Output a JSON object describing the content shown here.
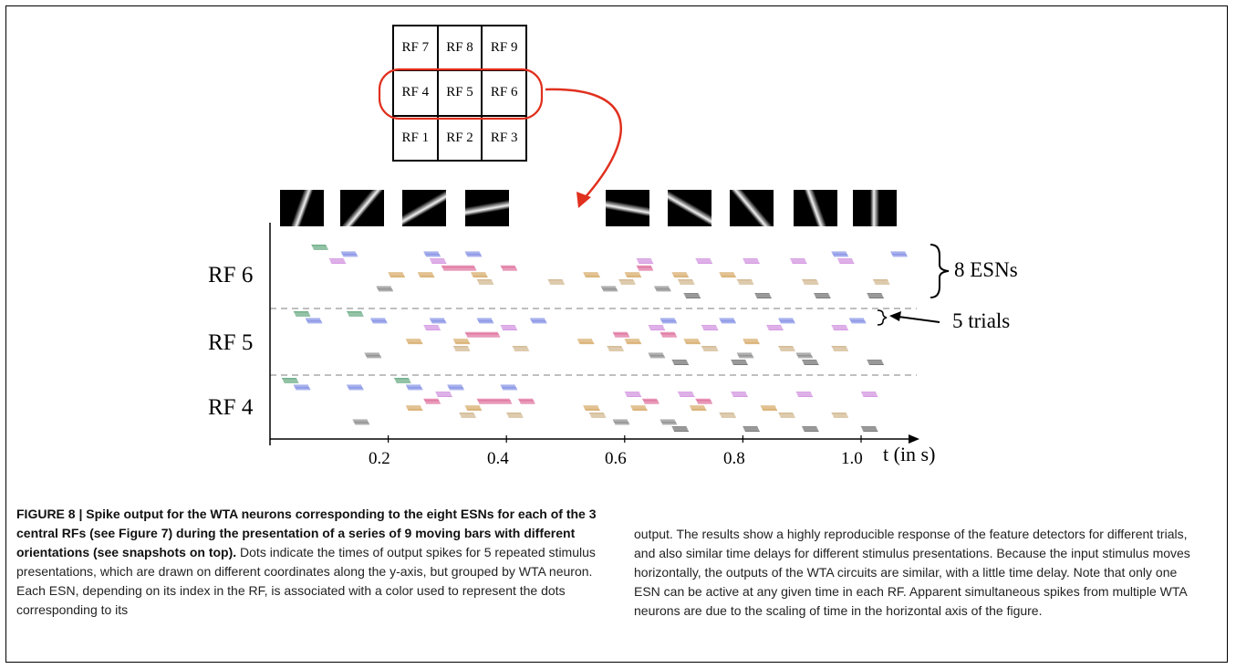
{
  "rf_grid": {
    "rows": [
      [
        "RF 7",
        "RF 8",
        "RF 9"
      ],
      [
        "RF 4",
        "RF 5",
        "RF 6"
      ],
      [
        "RF 1",
        "RF 2",
        "RF 3"
      ]
    ],
    "highlight_color": "#e0301e"
  },
  "stimulus_orientations_deg": [
    70,
    50,
    30,
    10,
    -10,
    -30,
    -50,
    -70,
    -90
  ],
  "raster": {
    "row_labels": [
      "RF 6",
      "RF 5",
      "RF 4"
    ],
    "x_ticks": [
      "0.2",
      "0.4",
      "0.6",
      "0.8",
      "1.0"
    ],
    "x_label": "t (in s)",
    "annotations": {
      "esns": "8 ESNs",
      "trials": "5 trials"
    },
    "esn_colors": [
      "#4a9a6a",
      "#6b7ae0",
      "#c97bd8",
      "#d8558a",
      "#cf9a4a",
      "#c8a878",
      "#777777",
      "#555555"
    ]
  },
  "chart_data": {
    "type": "scatter",
    "xlabel": "t (in s)",
    "xticks": [
      0.2,
      0.4,
      0.6,
      0.8,
      1.0
    ],
    "xlim": [
      0,
      1.1
    ],
    "groups": [
      "RF 6",
      "RF 5",
      "RF 4"
    ],
    "esns_per_group": 8,
    "trials_per_esn": 5,
    "bursts": [
      {
        "group": 0,
        "esn": 0,
        "t": [
          0.07
        ]
      },
      {
        "group": 0,
        "esn": 1,
        "t": [
          0.12,
          0.26,
          0.33,
          0.95,
          1.05
        ]
      },
      {
        "group": 0,
        "esn": 2,
        "t": [
          0.1,
          0.27,
          0.62,
          0.72,
          0.8,
          0.88,
          0.96
        ]
      },
      {
        "group": 0,
        "esn": 3,
        "t": [
          0.29,
          0.39,
          0.62
        ]
      },
      {
        "group": 0,
        "esn": 4,
        "t": [
          0.2,
          0.25,
          0.34,
          0.53,
          0.6,
          0.68,
          0.76
        ]
      },
      {
        "group": 0,
        "esn": 5,
        "t": [
          0.35,
          0.47,
          0.59,
          0.69,
          0.79,
          0.9,
          1.02
        ]
      },
      {
        "group": 0,
        "esn": 6,
        "t": [
          0.18,
          0.56,
          0.65
        ]
      },
      {
        "group": 0,
        "esn": 7,
        "t": [
          0.7,
          0.82,
          0.92,
          1.01
        ]
      },
      {
        "group": 1,
        "esn": 0,
        "t": [
          0.04,
          0.13
        ]
      },
      {
        "group": 1,
        "esn": 1,
        "t": [
          0.06,
          0.17,
          0.27,
          0.35,
          0.44,
          0.66,
          0.76,
          0.86,
          0.98
        ]
      },
      {
        "group": 1,
        "esn": 2,
        "t": [
          0.26,
          0.39,
          0.64,
          0.73,
          0.84,
          0.95
        ]
      },
      {
        "group": 1,
        "esn": 3,
        "t": [
          0.33,
          0.58,
          0.66
        ]
      },
      {
        "group": 1,
        "esn": 4,
        "t": [
          0.23,
          0.31,
          0.52,
          0.6,
          0.7,
          0.8
        ]
      },
      {
        "group": 1,
        "esn": 5,
        "t": [
          0.31,
          0.41,
          0.57,
          0.73,
          0.86,
          0.95
        ]
      },
      {
        "group": 1,
        "esn": 6,
        "t": [
          0.16,
          0.64,
          0.79,
          0.89
        ]
      },
      {
        "group": 1,
        "esn": 7,
        "t": [
          0.68,
          0.78,
          0.9,
          1.01
        ]
      },
      {
        "group": 2,
        "esn": 0,
        "t": [
          0.02,
          0.21
        ]
      },
      {
        "group": 2,
        "esn": 1,
        "t": [
          0.04,
          0.13,
          0.23,
          0.3,
          0.39
        ]
      },
      {
        "group": 2,
        "esn": 2,
        "t": [
          0.28,
          0.6,
          0.69,
          0.78,
          0.89,
          1.0
        ]
      },
      {
        "group": 2,
        "esn": 3,
        "t": [
          0.26,
          0.35,
          0.42,
          0.63,
          0.72
        ]
      },
      {
        "group": 2,
        "esn": 4,
        "t": [
          0.23,
          0.33,
          0.53,
          0.61,
          0.71,
          0.83
        ]
      },
      {
        "group": 2,
        "esn": 5,
        "t": [
          0.32,
          0.4,
          0.54,
          0.76,
          0.86,
          0.95
        ]
      },
      {
        "group": 2,
        "esn": 6,
        "t": [
          0.14,
          0.58,
          0.66
        ]
      },
      {
        "group": 2,
        "esn": 7,
        "t": [
          0.68,
          0.8,
          0.9,
          1.0
        ]
      }
    ]
  },
  "caption": {
    "lead": "FIGURE 8 | Spike output for the WTA neurons corresponding to the eight ESNs for each of the 3 central RFs (see Figure 7) during the presentation of a series of 9 moving bars with different orientations (see snapshots on top).",
    "body_left": "Dots indicate the times of output spikes for 5 repeated stimulus presentations, which are drawn on different coordinates along the y-axis, but grouped by WTA neuron. Each ESN, depending on its index in the RF, is associated with a color used to represent the dots corresponding to its",
    "body_right": "output. The results show a highly reproducible response of the feature detectors for different trials, and also similar time delays for different stimulus presentations. Because the input stimulus moves horizontally, the outputs of the WTA circuits are similar, with a little time delay. Note that only one ESN can be active at any given time in each RF. Apparent simultaneous spikes from multiple WTA neurons are due to the scaling of time in the horizontal axis of the figure."
  }
}
